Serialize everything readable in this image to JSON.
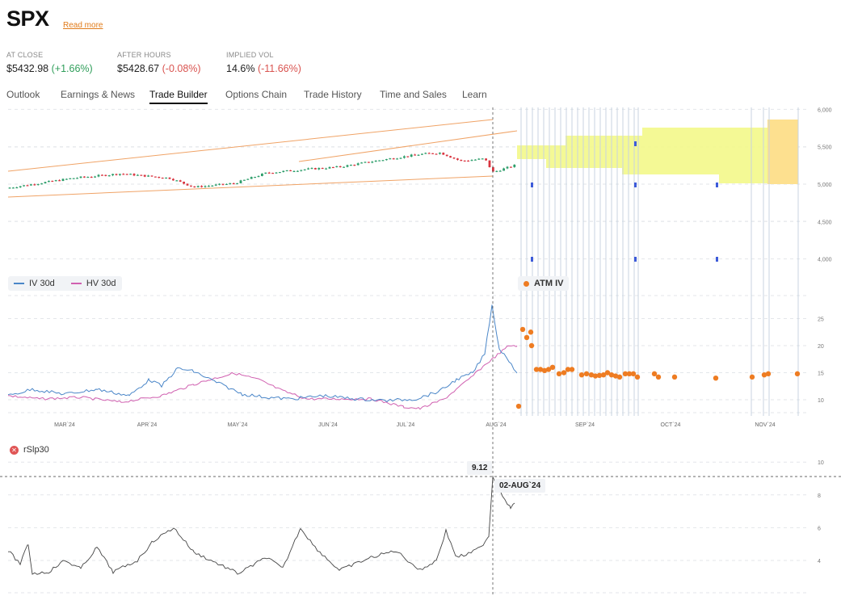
{
  "header": {
    "ticker": "SPX",
    "read_more": "Read more"
  },
  "stats": [
    {
      "label": "AT CLOSE",
      "value": "$5432.98",
      "change": "(+1.66%)",
      "direction": "up"
    },
    {
      "label": "AFTER HOURS",
      "value": "$5428.67",
      "change": "(-0.08%)",
      "direction": "down"
    },
    {
      "label": "IMPLIED VOL",
      "value": "14.6%",
      "change": "(-11.66%)",
      "direction": "down"
    }
  ],
  "tabs": [
    {
      "label": "Outlook",
      "active": false
    },
    {
      "label": "Earnings & News",
      "active": false
    },
    {
      "label": "Trade Builder",
      "active": true
    },
    {
      "label": "Options Chain",
      "active": false
    },
    {
      "label": "Trade History",
      "active": false
    },
    {
      "label": "Time and Sales",
      "active": false
    },
    {
      "label": "Learn",
      "active": false
    }
  ],
  "price_chart": {
    "y_ticks": [
      "6,000",
      "5,500",
      "5,000",
      "4,500",
      "4,000"
    ],
    "y_values": [
      6000,
      5500,
      5000,
      4500,
      4000
    ],
    "colors": {
      "up": "#2e9e6b",
      "down": "#d9343f",
      "channel": "#f0a366",
      "projection": "#f3f88a",
      "projection_far": "#fde08f"
    }
  },
  "vol_chart": {
    "legend": [
      {
        "label": "IV 30d",
        "color": "#4a86c8"
      },
      {
        "label": "HV 30d",
        "color": "#d060b0"
      }
    ],
    "atm_legend": "ATM IV",
    "atm_color": "#ee7c22",
    "y_ticks": [
      "25",
      "20",
      "15",
      "10"
    ],
    "y_values": [
      25,
      20,
      15,
      10
    ],
    "x_ticks": [
      "MAR`24",
      "APR`24",
      "MAY`24",
      "JUN`24",
      "JUL`24",
      "AUG`24",
      "SEP`24",
      "OCT`24",
      "NOV`24"
    ]
  },
  "indicator_chart": {
    "label": "rSlp30",
    "y_ticks": [
      "10",
      "8",
      "6",
      "4"
    ],
    "y_values": [
      10,
      8,
      6,
      4
    ],
    "cursor_value": "9.12",
    "cursor_date": "02-AUG`24",
    "line_color": "#444444"
  }
}
